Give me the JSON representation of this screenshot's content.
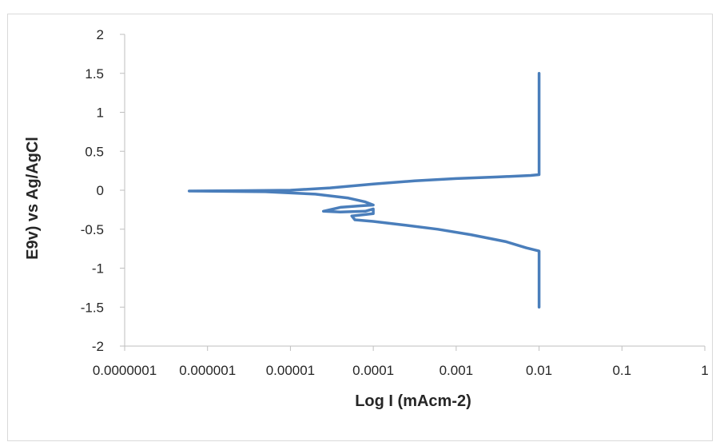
{
  "chart_data": {
    "type": "line",
    "title": "",
    "xlabel": "Log I (mAcm-2)",
    "ylabel": "E9v) vs Ag/AgCl",
    "x_scale": "log",
    "xlim": [
      1e-07,
      1
    ],
    "ylim": [
      -2,
      2
    ],
    "x_ticks": [
      1e-07,
      1e-06,
      1e-05,
      0.0001,
      0.001,
      0.01,
      0.1,
      1
    ],
    "x_tick_labels": [
      "0.0000001",
      "0.000001",
      "0.00001",
      "0.0001",
      "0.001",
      "0.01",
      "0.1",
      "1"
    ],
    "y_ticks": [
      2,
      1.5,
      1,
      0.5,
      0,
      -0.5,
      -1,
      -1.5,
      -2
    ],
    "y_tick_labels": [
      "2",
      "1.5",
      "1",
      "0.5",
      "0",
      "-0.5",
      "-1",
      "-1.5",
      "-2"
    ],
    "grid": false,
    "legend": "none",
    "series": [
      {
        "color": "#4a7ebb",
        "points": [
          {
            "x": 0.01,
            "y": 1.5
          },
          {
            "x": 0.01,
            "y": 0.2
          },
          {
            "x": 0.00794,
            "y": 0.19
          },
          {
            "x": 0.00316,
            "y": 0.17
          },
          {
            "x": 0.001,
            "y": 0.15
          },
          {
            "x": 0.000316,
            "y": 0.12
          },
          {
            "x": 0.0001,
            "y": 0.08
          },
          {
            "x": 3e-05,
            "y": 0.03
          },
          {
            "x": 1e-05,
            "y": 0.0
          },
          {
            "x": 3e-06,
            "y": -0.005
          },
          {
            "x": 6e-07,
            "y": -0.01
          },
          {
            "x": 5e-06,
            "y": -0.02
          },
          {
            "x": 2e-05,
            "y": -0.05
          },
          {
            "x": 5e-05,
            "y": -0.1
          },
          {
            "x": 8e-05,
            "y": -0.15
          },
          {
            "x": 0.0001,
            "y": -0.19
          },
          {
            "x": 7e-05,
            "y": -0.2
          },
          {
            "x": 4e-05,
            "y": -0.22
          },
          {
            "x": 2.5e-05,
            "y": -0.27
          },
          {
            "x": 4e-05,
            "y": -0.28
          },
          {
            "x": 8e-05,
            "y": -0.27
          },
          {
            "x": 0.0001,
            "y": -0.24
          },
          {
            "x": 0.0001,
            "y": -0.3
          },
          {
            "x": 5.5e-05,
            "y": -0.33
          },
          {
            "x": 6e-05,
            "y": -0.38
          },
          {
            "x": 0.0001,
            "y": -0.4
          },
          {
            "x": 0.00025,
            "y": -0.45
          },
          {
            "x": 0.0006,
            "y": -0.5
          },
          {
            "x": 0.0015,
            "y": -0.57
          },
          {
            "x": 0.004,
            "y": -0.66
          },
          {
            "x": 0.007,
            "y": -0.74
          },
          {
            "x": 0.01,
            "y": -0.78
          },
          {
            "x": 0.01,
            "y": -1.5
          }
        ]
      }
    ]
  }
}
